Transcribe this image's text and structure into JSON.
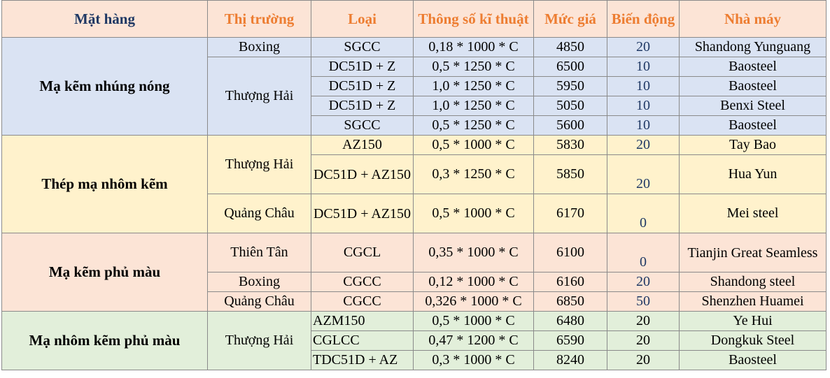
{
  "headers": [
    "Mặt hàng",
    "Thị trường",
    "Loại",
    "Thông số kĩ thuật",
    "Mức giá",
    "Biến động",
    "Nhà máy"
  ],
  "groups": [
    {
      "name": "Mạ kẽm nhúng nóng",
      "markets": [
        {
          "market": "Boxing",
          "rows": [
            {
              "type": "SGCC",
              "spec": "0,18 * 1000 * C",
              "price": "4850",
              "change": "20",
              "factory": "Shandong Yunguang"
            }
          ]
        },
        {
          "market": "Thượng Hải",
          "rows": [
            {
              "type": "DC51D + Z",
              "spec": "0,5 * 1250 * C",
              "price": "6500",
              "change": "10",
              "factory": "Baosteel"
            },
            {
              "type": "DC51D + Z",
              "spec": "1,0 * 1250 * C",
              "price": "5950",
              "change": "10",
              "factory": "Baosteel"
            },
            {
              "type": "DC51D + Z",
              "spec": "1,0 * 1250 * C",
              "price": "5050",
              "change": "10",
              "factory": "Benxi Steel"
            },
            {
              "type": "SGCC",
              "spec": "0,5 * 1250 * C",
              "price": "5600",
              "change": "10",
              "factory": "Baosteel"
            }
          ]
        }
      ]
    },
    {
      "name": "Thép mạ nhôm kẽm",
      "markets": [
        {
          "market": "Thượng Hải",
          "rows": [
            {
              "type": "AZ150",
              "spec": "0,5 * 1000 * C",
              "price": "5830",
              "change": "20",
              "factory": "Tay Bao"
            },
            {
              "type": "DC51D + AZ150",
              "spec": "0,3 * 1250 * C",
              "price": "5850",
              "change": "20",
              "factory": "Hua Yun"
            }
          ]
        },
        {
          "market": "Quảng Châu",
          "rows": [
            {
              "type": "DC51D + AZ150",
              "spec": "0,5 * 1000 * C",
              "price": "6170",
              "change": "0",
              "factory": "Mei steel"
            }
          ]
        }
      ]
    },
    {
      "name": "Mạ kẽm phủ màu",
      "markets": [
        {
          "market": "Thiên Tân",
          "rows": [
            {
              "type": "CGCL",
              "spec": "0,35 * 1000 * C",
              "price": "6100",
              "change": "0",
              "factory": "Tianjin Great Seamless"
            }
          ]
        },
        {
          "market": "Boxing",
          "rows": [
            {
              "type": "CGCC",
              "spec": "0,12 * 1000 * C",
              "price": "6160",
              "change": "20",
              "factory": "Shandong steel"
            }
          ]
        },
        {
          "market": "Quảng Châu",
          "rows": [
            {
              "type": "CGCC",
              "spec": "0,326 * 1000 * C",
              "price": "6850",
              "change": "50",
              "factory": "Shenzhen Huamei"
            }
          ]
        }
      ]
    },
    {
      "name": "Mạ nhôm kẽm phủ màu",
      "markets": [
        {
          "market": "Thượng Hải",
          "rows": [
            {
              "type": "AZM150",
              "spec": "0,5 * 1000 * C",
              "price": "6480",
              "change": "20",
              "factory": "Ye Hui"
            },
            {
              "type": "CGLCC",
              "spec": "0,47 * 1200 * C",
              "price": "6590",
              "change": "20",
              "factory": "Dongkuk Steel"
            },
            {
              "type": "TDC51D + AZ",
              "spec": "0,3 * 1000 * C",
              "price": "8240",
              "change": "20",
              "factory": "Baosteel"
            }
          ]
        }
      ]
    }
  ]
}
